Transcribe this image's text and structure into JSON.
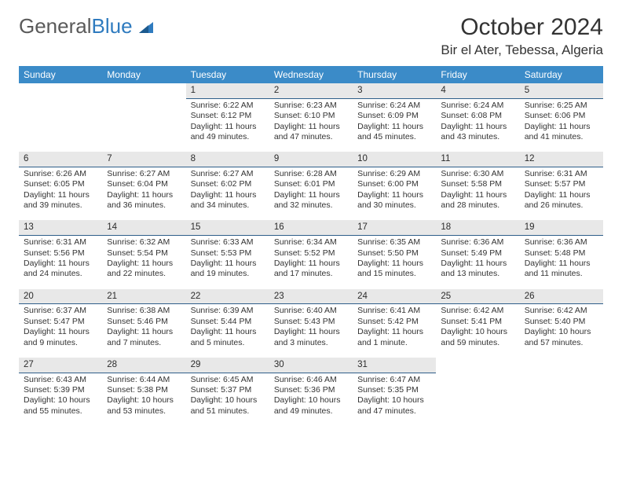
{
  "logo": {
    "text1": "General",
    "text2": "Blue",
    "color_gray": "#5a5a5a",
    "color_blue": "#2f7bbf"
  },
  "title": "October 2024",
  "location": "Bir el Ater, Tebessa, Algeria",
  "header_bg": "#3b8bc8",
  "header_fg": "#ffffff",
  "daynum_bg": "#e8e8e8",
  "daynum_border": "#2f5f8a",
  "day_names": [
    "Sunday",
    "Monday",
    "Tuesday",
    "Wednesday",
    "Thursday",
    "Friday",
    "Saturday"
  ],
  "weeks": [
    {
      "nums": [
        "",
        "",
        "1",
        "2",
        "3",
        "4",
        "5"
      ],
      "cells": [
        null,
        null,
        {
          "sunrise": "Sunrise: 6:22 AM",
          "sunset": "Sunset: 6:12 PM",
          "day1": "Daylight: 11 hours",
          "day2": "and 49 minutes."
        },
        {
          "sunrise": "Sunrise: 6:23 AM",
          "sunset": "Sunset: 6:10 PM",
          "day1": "Daylight: 11 hours",
          "day2": "and 47 minutes."
        },
        {
          "sunrise": "Sunrise: 6:24 AM",
          "sunset": "Sunset: 6:09 PM",
          "day1": "Daylight: 11 hours",
          "day2": "and 45 minutes."
        },
        {
          "sunrise": "Sunrise: 6:24 AM",
          "sunset": "Sunset: 6:08 PM",
          "day1": "Daylight: 11 hours",
          "day2": "and 43 minutes."
        },
        {
          "sunrise": "Sunrise: 6:25 AM",
          "sunset": "Sunset: 6:06 PM",
          "day1": "Daylight: 11 hours",
          "day2": "and 41 minutes."
        }
      ]
    },
    {
      "nums": [
        "6",
        "7",
        "8",
        "9",
        "10",
        "11",
        "12"
      ],
      "cells": [
        {
          "sunrise": "Sunrise: 6:26 AM",
          "sunset": "Sunset: 6:05 PM",
          "day1": "Daylight: 11 hours",
          "day2": "and 39 minutes."
        },
        {
          "sunrise": "Sunrise: 6:27 AM",
          "sunset": "Sunset: 6:04 PM",
          "day1": "Daylight: 11 hours",
          "day2": "and 36 minutes."
        },
        {
          "sunrise": "Sunrise: 6:27 AM",
          "sunset": "Sunset: 6:02 PM",
          "day1": "Daylight: 11 hours",
          "day2": "and 34 minutes."
        },
        {
          "sunrise": "Sunrise: 6:28 AM",
          "sunset": "Sunset: 6:01 PM",
          "day1": "Daylight: 11 hours",
          "day2": "and 32 minutes."
        },
        {
          "sunrise": "Sunrise: 6:29 AM",
          "sunset": "Sunset: 6:00 PM",
          "day1": "Daylight: 11 hours",
          "day2": "and 30 minutes."
        },
        {
          "sunrise": "Sunrise: 6:30 AM",
          "sunset": "Sunset: 5:58 PM",
          "day1": "Daylight: 11 hours",
          "day2": "and 28 minutes."
        },
        {
          "sunrise": "Sunrise: 6:31 AM",
          "sunset": "Sunset: 5:57 PM",
          "day1": "Daylight: 11 hours",
          "day2": "and 26 minutes."
        }
      ]
    },
    {
      "nums": [
        "13",
        "14",
        "15",
        "16",
        "17",
        "18",
        "19"
      ],
      "cells": [
        {
          "sunrise": "Sunrise: 6:31 AM",
          "sunset": "Sunset: 5:56 PM",
          "day1": "Daylight: 11 hours",
          "day2": "and 24 minutes."
        },
        {
          "sunrise": "Sunrise: 6:32 AM",
          "sunset": "Sunset: 5:54 PM",
          "day1": "Daylight: 11 hours",
          "day2": "and 22 minutes."
        },
        {
          "sunrise": "Sunrise: 6:33 AM",
          "sunset": "Sunset: 5:53 PM",
          "day1": "Daylight: 11 hours",
          "day2": "and 19 minutes."
        },
        {
          "sunrise": "Sunrise: 6:34 AM",
          "sunset": "Sunset: 5:52 PM",
          "day1": "Daylight: 11 hours",
          "day2": "and 17 minutes."
        },
        {
          "sunrise": "Sunrise: 6:35 AM",
          "sunset": "Sunset: 5:50 PM",
          "day1": "Daylight: 11 hours",
          "day2": "and 15 minutes."
        },
        {
          "sunrise": "Sunrise: 6:36 AM",
          "sunset": "Sunset: 5:49 PM",
          "day1": "Daylight: 11 hours",
          "day2": "and 13 minutes."
        },
        {
          "sunrise": "Sunrise: 6:36 AM",
          "sunset": "Sunset: 5:48 PM",
          "day1": "Daylight: 11 hours",
          "day2": "and 11 minutes."
        }
      ]
    },
    {
      "nums": [
        "20",
        "21",
        "22",
        "23",
        "24",
        "25",
        "26"
      ],
      "cells": [
        {
          "sunrise": "Sunrise: 6:37 AM",
          "sunset": "Sunset: 5:47 PM",
          "day1": "Daylight: 11 hours",
          "day2": "and 9 minutes."
        },
        {
          "sunrise": "Sunrise: 6:38 AM",
          "sunset": "Sunset: 5:46 PM",
          "day1": "Daylight: 11 hours",
          "day2": "and 7 minutes."
        },
        {
          "sunrise": "Sunrise: 6:39 AM",
          "sunset": "Sunset: 5:44 PM",
          "day1": "Daylight: 11 hours",
          "day2": "and 5 minutes."
        },
        {
          "sunrise": "Sunrise: 6:40 AM",
          "sunset": "Sunset: 5:43 PM",
          "day1": "Daylight: 11 hours",
          "day2": "and 3 minutes."
        },
        {
          "sunrise": "Sunrise: 6:41 AM",
          "sunset": "Sunset: 5:42 PM",
          "day1": "Daylight: 11 hours",
          "day2": "and 1 minute."
        },
        {
          "sunrise": "Sunrise: 6:42 AM",
          "sunset": "Sunset: 5:41 PM",
          "day1": "Daylight: 10 hours",
          "day2": "and 59 minutes."
        },
        {
          "sunrise": "Sunrise: 6:42 AM",
          "sunset": "Sunset: 5:40 PM",
          "day1": "Daylight: 10 hours",
          "day2": "and 57 minutes."
        }
      ]
    },
    {
      "nums": [
        "27",
        "28",
        "29",
        "30",
        "31",
        "",
        ""
      ],
      "cells": [
        {
          "sunrise": "Sunrise: 6:43 AM",
          "sunset": "Sunset: 5:39 PM",
          "day1": "Daylight: 10 hours",
          "day2": "and 55 minutes."
        },
        {
          "sunrise": "Sunrise: 6:44 AM",
          "sunset": "Sunset: 5:38 PM",
          "day1": "Daylight: 10 hours",
          "day2": "and 53 minutes."
        },
        {
          "sunrise": "Sunrise: 6:45 AM",
          "sunset": "Sunset: 5:37 PM",
          "day1": "Daylight: 10 hours",
          "day2": "and 51 minutes."
        },
        {
          "sunrise": "Sunrise: 6:46 AM",
          "sunset": "Sunset: 5:36 PM",
          "day1": "Daylight: 10 hours",
          "day2": "and 49 minutes."
        },
        {
          "sunrise": "Sunrise: 6:47 AM",
          "sunset": "Sunset: 5:35 PM",
          "day1": "Daylight: 10 hours",
          "day2": "and 47 minutes."
        },
        null,
        null
      ]
    }
  ]
}
